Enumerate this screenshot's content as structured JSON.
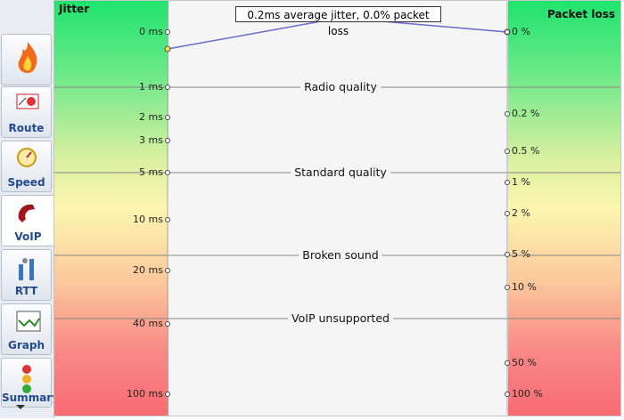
{
  "sidebar": {
    "tabs": [
      "Route",
      "Speed",
      "VoIP",
      "RTT",
      "Graph",
      "Summary"
    ]
  },
  "panel": {
    "jitter_title": "Jitter",
    "loss_title": "Packet loss",
    "summary": "0.2ms average jitter, 0.0% packet loss",
    "jitter_ticks": [
      "0 ms",
      "1 ms",
      "2 ms",
      "3 ms",
      "5 ms",
      "10 ms",
      "20 ms",
      "40 ms",
      "100 ms"
    ],
    "loss_ticks": [
      "0 %",
      "0.2 %",
      "0.5 %",
      "1 %",
      "2 %",
      "5 %",
      "10 %",
      "50 %",
      "100 %"
    ],
    "quality_levels": [
      "Radio quality",
      "Standard quality",
      "Broken sound",
      "VoIP unsupported"
    ]
  }
}
